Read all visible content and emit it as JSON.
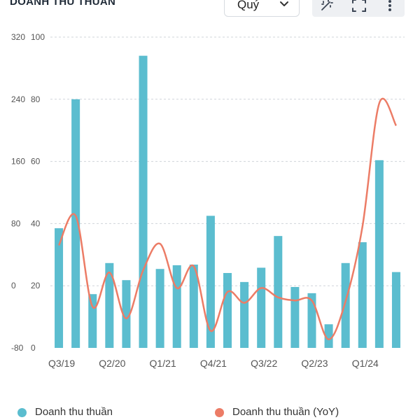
{
  "header": {
    "title": "DOANH THU THUẦN",
    "period_select": {
      "value": "Quý",
      "icon": "chevron-down-icon"
    },
    "toolbar": [
      {
        "icon": "magic-wand-icon"
      },
      {
        "icon": "fullscreen-icon"
      },
      {
        "icon": "more-vertical-icon"
      }
    ]
  },
  "colors": {
    "bars": "#5bbdcf",
    "line": "#ec7c66",
    "grid": "#cfd4da",
    "axis_text": "#555555"
  },
  "chart_data": {
    "type": "bar",
    "categories": [
      "Q3/19",
      "Q4/19",
      "Q1/20",
      "Q2/20",
      "Q3/20",
      "Q4/20",
      "Q1/21",
      "Q2/21",
      "Q3/21",
      "Q4/21",
      "Q1/22",
      "Q2/22",
      "Q3/22",
      "Q4/22",
      "Q1/23",
      "Q2/23",
      "Q3/23",
      "Q4/23",
      "Q1/24",
      "Q2/24",
      "Q3/24"
    ],
    "x_tick_labels": [
      "Q3/19",
      "Q2/20",
      "Q1/21",
      "Q4/21",
      "Q3/22",
      "Q2/23",
      "Q1/24"
    ],
    "x_tick_indices": [
      0,
      3,
      6,
      9,
      12,
      15,
      18
    ],
    "series": [
      {
        "name": "Doanh thu thuần",
        "type": "bar",
        "axis": "right",
        "values": [
          38.5,
          80,
          17.3,
          27.3,
          21.8,
          94,
          25.4,
          26.6,
          26.8,
          42.5,
          24.1,
          21.2,
          25.8,
          36,
          19.6,
          17.6,
          7.6,
          27.3,
          34,
          60.4,
          24.4
        ]
      },
      {
        "name": "Doanh thu thuần (YoY)",
        "type": "line",
        "axis": "left",
        "values": [
          52,
          90,
          -27,
          17,
          -42,
          20,
          54,
          -3,
          25,
          -58,
          -8,
          -22,
          -3,
          -15,
          -19,
          -19,
          -69,
          -20,
          76,
          235,
          206
        ]
      }
    ],
    "y_left": {
      "ticks": [
        320,
        240,
        160,
        80,
        0,
        -80
      ],
      "ylim": [
        -80,
        320
      ]
    },
    "y_right": {
      "ticks": [
        100,
        80,
        60,
        40,
        20,
        0
      ],
      "ylim": [
        0,
        100
      ]
    },
    "grid": true,
    "legend": "bottom"
  }
}
